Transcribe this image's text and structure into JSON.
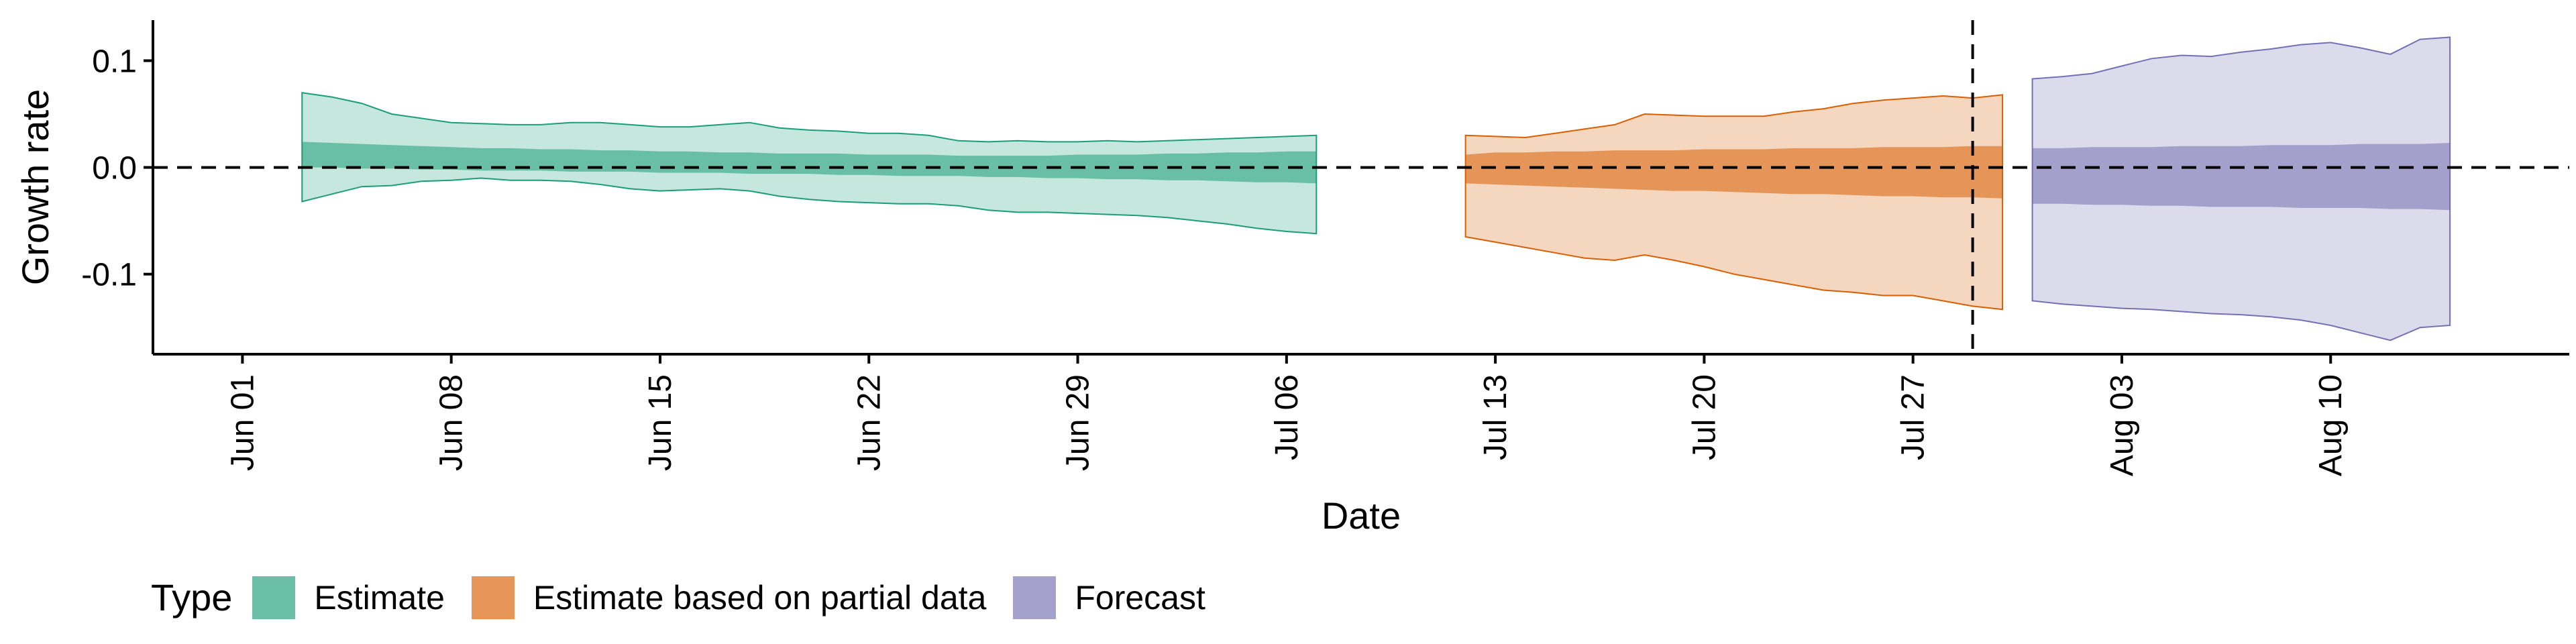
{
  "chart_data": {
    "type": "area",
    "xlabel": "Date",
    "ylabel": "Growth rate",
    "xlim": [
      "2020-05-29",
      "2020-08-18"
    ],
    "ylim": [
      -0.175,
      0.138
    ],
    "y_ticks": [
      -0.1,
      0.0,
      0.1
    ],
    "y_tick_labels": [
      "-0.1",
      "0.0",
      "0.1"
    ],
    "x_ticks": [
      "2020-06-01",
      "2020-06-08",
      "2020-06-15",
      "2020-06-22",
      "2020-06-29",
      "2020-07-06",
      "2020-07-13",
      "2020-07-20",
      "2020-07-27",
      "2020-08-03",
      "2020-08-10"
    ],
    "x_tick_labels": [
      "Jun 01",
      "Jun 08",
      "Jun 15",
      "Jun 22",
      "Jun 29",
      "Jul 06",
      "Jul 13",
      "Jul 20",
      "Jul 27",
      "Aug 03",
      "Aug 10"
    ],
    "reference_lines": [
      {
        "orientation": "horizontal",
        "value": 0.0,
        "style": "dashed"
      },
      {
        "orientation": "vertical",
        "value": "2020-07-29",
        "style": "dashed"
      }
    ],
    "grid": false,
    "legend": {
      "title": "Type",
      "position": "bottom-left"
    },
    "series": [
      {
        "name": "Estimate",
        "fill_color": "#1b9e77",
        "x_start": "2020-06-03",
        "outer_upper": [
          0.07,
          0.066,
          0.06,
          0.05,
          0.046,
          0.042,
          0.041,
          0.04,
          0.04,
          0.042,
          0.042,
          0.04,
          0.038,
          0.038,
          0.04,
          0.042,
          0.037,
          0.035,
          0.034,
          0.032,
          0.032,
          0.03,
          0.025,
          0.024,
          0.025,
          0.024,
          0.024,
          0.025,
          0.024,
          0.025,
          0.026,
          0.027,
          0.028,
          0.029,
          0.03
        ],
        "inner_upper": [
          0.024,
          0.023,
          0.022,
          0.021,
          0.02,
          0.019,
          0.018,
          0.018,
          0.017,
          0.017,
          0.016,
          0.016,
          0.015,
          0.015,
          0.014,
          0.014,
          0.013,
          0.013,
          0.013,
          0.012,
          0.012,
          0.012,
          0.011,
          0.011,
          0.011,
          0.011,
          0.012,
          0.012,
          0.012,
          0.013,
          0.013,
          0.014,
          0.014,
          0.015,
          0.015
        ],
        "inner_lower": [
          0.0,
          0.0,
          -0.001,
          -0.001,
          -0.002,
          -0.002,
          -0.003,
          -0.003,
          -0.003,
          -0.004,
          -0.004,
          -0.004,
          -0.005,
          -0.005,
          -0.005,
          -0.006,
          -0.006,
          -0.006,
          -0.007,
          -0.007,
          -0.008,
          -0.008,
          -0.008,
          -0.009,
          -0.009,
          -0.01,
          -0.01,
          -0.011,
          -0.011,
          -0.012,
          -0.012,
          -0.013,
          -0.014,
          -0.014,
          -0.015
        ],
        "outer_lower": [
          -0.032,
          -0.025,
          -0.018,
          -0.017,
          -0.013,
          -0.012,
          -0.01,
          -0.012,
          -0.012,
          -0.013,
          -0.016,
          -0.02,
          -0.022,
          -0.021,
          -0.02,
          -0.022,
          -0.027,
          -0.03,
          -0.032,
          -0.033,
          -0.034,
          -0.034,
          -0.036,
          -0.04,
          -0.042,
          -0.042,
          -0.043,
          -0.044,
          -0.045,
          -0.047,
          -0.05,
          -0.053,
          -0.057,
          -0.06,
          -0.062
        ]
      },
      {
        "name": "Estimate based on partial data",
        "fill_color": "#d95f02",
        "x_start": "2020-07-12",
        "outer_upper": [
          0.03,
          0.029,
          0.028,
          0.032,
          0.036,
          0.04,
          0.05,
          0.049,
          0.048,
          0.048,
          0.048,
          0.052,
          0.055,
          0.06,
          0.063,
          0.065,
          0.067,
          0.065,
          0.068
        ],
        "inner_upper": [
          0.012,
          0.014,
          0.014,
          0.015,
          0.015,
          0.016,
          0.016,
          0.016,
          0.017,
          0.017,
          0.017,
          0.018,
          0.018,
          0.018,
          0.019,
          0.019,
          0.019,
          0.02,
          0.02
        ],
        "inner_lower": [
          -0.015,
          -0.016,
          -0.017,
          -0.018,
          -0.019,
          -0.02,
          -0.021,
          -0.022,
          -0.022,
          -0.023,
          -0.024,
          -0.025,
          -0.025,
          -0.026,
          -0.027,
          -0.027,
          -0.028,
          -0.028,
          -0.029
        ],
        "outer_lower": [
          -0.065,
          -0.07,
          -0.075,
          -0.08,
          -0.085,
          -0.087,
          -0.082,
          -0.087,
          -0.093,
          -0.1,
          -0.105,
          -0.11,
          -0.115,
          -0.117,
          -0.12,
          -0.12,
          -0.125,
          -0.13,
          -0.133
        ]
      },
      {
        "name": "Forecast",
        "fill_color": "#7570b3",
        "x_start": "2020-07-31",
        "outer_upper": [
          0.083,
          0.085,
          0.088,
          0.095,
          0.102,
          0.105,
          0.104,
          0.108,
          0.111,
          0.115,
          0.117,
          0.112,
          0.106,
          0.12,
          0.122
        ],
        "inner_upper": [
          0.018,
          0.018,
          0.019,
          0.019,
          0.019,
          0.02,
          0.02,
          0.02,
          0.021,
          0.021,
          0.021,
          0.022,
          0.022,
          0.022,
          0.023
        ],
        "inner_lower": [
          -0.034,
          -0.034,
          -0.035,
          -0.035,
          -0.036,
          -0.036,
          -0.037,
          -0.037,
          -0.037,
          -0.038,
          -0.038,
          -0.038,
          -0.039,
          -0.039,
          -0.04
        ],
        "outer_lower": [
          -0.125,
          -0.128,
          -0.13,
          -0.132,
          -0.133,
          -0.135,
          -0.137,
          -0.138,
          -0.14,
          -0.143,
          -0.148,
          -0.155,
          -0.162,
          -0.15,
          -0.148
        ]
      }
    ]
  }
}
